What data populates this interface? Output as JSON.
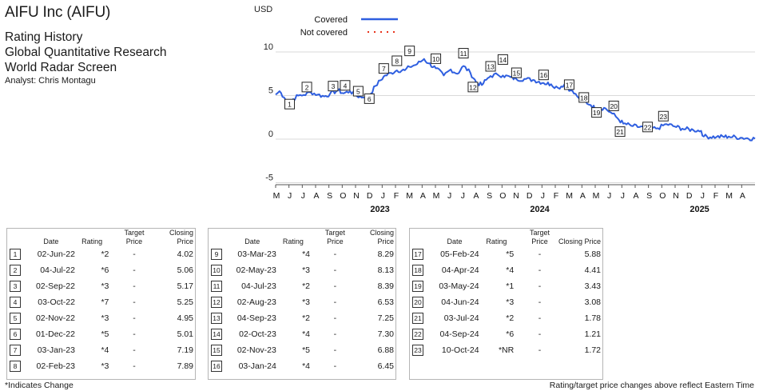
{
  "header": {
    "title": "AIFU Inc (AIFU)",
    "lines": [
      "Rating History",
      "Global Quantitative Research",
      "World Radar Screen"
    ],
    "analyst": "Analyst: Chris Montagu"
  },
  "colors": {
    "line": "#2f5fe0",
    "not_covered": "#e8331c",
    "grid": "#d9d9d9"
  },
  "chart_data": {
    "type": "line",
    "ylabel": "USD",
    "ylim": [
      -5,
      10
    ],
    "yticks": [
      -5,
      0,
      5,
      10
    ],
    "grid": true,
    "legend": {
      "placement": "top",
      "entries": [
        "Covered",
        "Not covered"
      ]
    },
    "x_month_ticks": [
      "M",
      "J",
      "J",
      "A",
      "S",
      "O",
      "N",
      "D",
      "J",
      "F",
      "M",
      "A",
      "M",
      "J",
      "J",
      "A",
      "S",
      "O",
      "N",
      "D",
      "J",
      "F",
      "M",
      "A",
      "M",
      "J",
      "J",
      "A",
      "S",
      "O",
      "N",
      "D",
      "J",
      "F",
      "M",
      "A"
    ],
    "x_years": [
      {
        "label": "2023",
        "month_index": 8
      },
      {
        "label": "2024",
        "month_index": 20
      },
      {
        "label": "2025",
        "month_index": 32
      }
    ],
    "x_start": "2022-05-01",
    "x_end": "2025-04-30",
    "series": [
      {
        "name": "Covered",
        "points": [
          [
            "2022-05-01",
            5.1
          ],
          [
            "2022-05-10",
            5.5
          ],
          [
            "2022-05-20",
            4.8
          ],
          [
            "2022-06-01",
            4.3
          ],
          [
            "2022-06-02",
            4.02
          ],
          [
            "2022-06-10",
            4.6
          ],
          [
            "2022-06-22",
            5.0
          ],
          [
            "2022-07-04",
            5.06
          ],
          [
            "2022-07-20",
            5.4
          ],
          [
            "2022-08-05",
            5.1
          ],
          [
            "2022-08-20",
            4.9
          ],
          [
            "2022-09-02",
            5.17
          ],
          [
            "2022-09-20",
            5.6
          ],
          [
            "2022-10-03",
            5.25
          ],
          [
            "2022-10-18",
            5.5
          ],
          [
            "2022-11-02",
            4.95
          ],
          [
            "2022-11-18",
            4.8
          ],
          [
            "2022-12-01",
            5.01
          ],
          [
            "2022-12-15",
            6.1
          ],
          [
            "2023-01-03",
            7.19
          ],
          [
            "2023-01-20",
            7.6
          ],
          [
            "2023-02-02",
            7.89
          ],
          [
            "2023-02-20",
            7.9
          ],
          [
            "2023-03-03",
            8.29
          ],
          [
            "2023-03-20",
            8.6
          ],
          [
            "2023-04-05",
            9.2
          ],
          [
            "2023-04-15",
            8.7
          ],
          [
            "2023-05-02",
            8.13
          ],
          [
            "2023-05-20",
            7.3
          ],
          [
            "2023-06-05",
            8.0
          ],
          [
            "2023-06-20",
            7.5
          ],
          [
            "2023-07-04",
            8.39
          ],
          [
            "2023-07-20",
            7.6
          ],
          [
            "2023-08-02",
            6.53
          ],
          [
            "2023-08-15",
            6.2
          ],
          [
            "2023-08-25",
            6.8
          ],
          [
            "2023-09-04",
            7.25
          ],
          [
            "2023-09-20",
            7.4
          ],
          [
            "2023-10-02",
            7.3
          ],
          [
            "2023-10-20",
            7.1
          ],
          [
            "2023-11-02",
            6.88
          ],
          [
            "2023-11-20",
            6.9
          ],
          [
            "2023-12-10",
            6.8
          ],
          [
            "2024-01-03",
            6.45
          ],
          [
            "2024-01-20",
            6.3
          ],
          [
            "2024-02-05",
            5.88
          ],
          [
            "2024-02-20",
            6.3
          ],
          [
            "2024-03-05",
            5.6
          ],
          [
            "2024-03-20",
            4.9
          ],
          [
            "2024-04-04",
            4.41
          ],
          [
            "2024-04-20",
            3.9
          ],
          [
            "2024-05-03",
            3.43
          ],
          [
            "2024-05-20",
            3.6
          ],
          [
            "2024-06-04",
            3.08
          ],
          [
            "2024-06-20",
            2.4
          ],
          [
            "2024-07-03",
            1.78
          ],
          [
            "2024-07-25",
            1.5
          ],
          [
            "2024-08-20",
            1.3
          ],
          [
            "2024-09-04",
            1.21
          ],
          [
            "2024-09-20",
            1.25
          ],
          [
            "2024-10-10",
            1.72
          ],
          [
            "2024-10-25",
            1.5
          ],
          [
            "2024-11-15",
            1.2
          ],
          [
            "2024-12-10",
            1.05
          ],
          [
            "2024-12-28",
            0.95
          ],
          [
            "2025-01-03",
            0.3
          ],
          [
            "2025-02-01",
            0.25
          ],
          [
            "2025-03-01",
            0.3
          ],
          [
            "2025-04-01",
            0.15
          ],
          [
            "2025-04-30",
            0.05
          ]
        ]
      }
    ],
    "markers": [
      {
        "n": 1,
        "date": "2022-06-02",
        "price": 4.02
      },
      {
        "n": 2,
        "date": "2022-07-04",
        "price": 5.06
      },
      {
        "n": 3,
        "date": "2022-09-02",
        "price": 5.17
      },
      {
        "n": 4,
        "date": "2022-10-03",
        "price": 5.25
      },
      {
        "n": 5,
        "date": "2022-11-02",
        "price": 4.95
      },
      {
        "n": 6,
        "date": "2022-12-01",
        "price": 5.01
      },
      {
        "n": 7,
        "date": "2023-01-03",
        "price": 7.19
      },
      {
        "n": 8,
        "date": "2023-02-02",
        "price": 7.89
      },
      {
        "n": 9,
        "date": "2023-03-03",
        "price": 8.29
      },
      {
        "n": 10,
        "date": "2023-05-02",
        "price": 8.13
      },
      {
        "n": 11,
        "date": "2023-07-04",
        "price": 8.39
      },
      {
        "n": 12,
        "date": "2023-08-02",
        "price": 6.53
      },
      {
        "n": 13,
        "date": "2023-09-04",
        "price": 7.25
      },
      {
        "n": 14,
        "date": "2023-10-02",
        "price": 7.3
      },
      {
        "n": 15,
        "date": "2023-11-02",
        "price": 6.88
      },
      {
        "n": 16,
        "date": "2024-01-03",
        "price": 6.45
      },
      {
        "n": 17,
        "date": "2024-02-05",
        "price": 5.88
      },
      {
        "n": 18,
        "date": "2024-04-04",
        "price": 4.41
      },
      {
        "n": 19,
        "date": "2024-05-03",
        "price": 3.43
      },
      {
        "n": 20,
        "date": "2024-06-04",
        "price": 3.08
      },
      {
        "n": 21,
        "date": "2024-07-03",
        "price": 1.78
      },
      {
        "n": 22,
        "date": "2024-09-04",
        "price": 1.21
      },
      {
        "n": 23,
        "date": "2024-10-10",
        "price": 1.72
      }
    ]
  },
  "table": {
    "headers": {
      "date": "Date",
      "rating": "Rating",
      "target": "Target Price",
      "close": "Closing Price"
    },
    "groups": [
      [
        {
          "n": "1",
          "date": "02-Jun-22",
          "rating": "*2",
          "target": "-",
          "close": "4.02"
        },
        {
          "n": "2",
          "date": "04-Jul-22",
          "rating": "*6",
          "target": "-",
          "close": "5.06"
        },
        {
          "n": "3",
          "date": "02-Sep-22",
          "rating": "*3",
          "target": "-",
          "close": "5.17"
        },
        {
          "n": "4",
          "date": "03-Oct-22",
          "rating": "*7",
          "target": "-",
          "close": "5.25"
        },
        {
          "n": "5",
          "date": "02-Nov-22",
          "rating": "*3",
          "target": "-",
          "close": "4.95"
        },
        {
          "n": "6",
          "date": "01-Dec-22",
          "rating": "*5",
          "target": "-",
          "close": "5.01"
        },
        {
          "n": "7",
          "date": "03-Jan-23",
          "rating": "*4",
          "target": "-",
          "close": "7.19"
        },
        {
          "n": "8",
          "date": "02-Feb-23",
          "rating": "*3",
          "target": "-",
          "close": "7.89"
        }
      ],
      [
        {
          "n": "9",
          "date": "03-Mar-23",
          "rating": "*4",
          "target": "-",
          "close": "8.29"
        },
        {
          "n": "10",
          "date": "02-May-23",
          "rating": "*3",
          "target": "-",
          "close": "8.13"
        },
        {
          "n": "11",
          "date": "04-Jul-23",
          "rating": "*2",
          "target": "-",
          "close": "8.39"
        },
        {
          "n": "12",
          "date": "02-Aug-23",
          "rating": "*3",
          "target": "-",
          "close": "6.53"
        },
        {
          "n": "13",
          "date": "04-Sep-23",
          "rating": "*2",
          "target": "-",
          "close": "7.25"
        },
        {
          "n": "14",
          "date": "02-Oct-23",
          "rating": "*4",
          "target": "-",
          "close": "7.30"
        },
        {
          "n": "15",
          "date": "02-Nov-23",
          "rating": "*5",
          "target": "-",
          "close": "6.88"
        },
        {
          "n": "16",
          "date": "03-Jan-24",
          "rating": "*4",
          "target": "-",
          "close": "6.45"
        }
      ],
      [
        {
          "n": "17",
          "date": "05-Feb-24",
          "rating": "*5",
          "target": "-",
          "close": "5.88"
        },
        {
          "n": "18",
          "date": "04-Apr-24",
          "rating": "*4",
          "target": "-",
          "close": "4.41"
        },
        {
          "n": "19",
          "date": "03-May-24",
          "rating": "*1",
          "target": "-",
          "close": "3.43"
        },
        {
          "n": "20",
          "date": "04-Jun-24",
          "rating": "*3",
          "target": "-",
          "close": "3.08"
        },
        {
          "n": "21",
          "date": "03-Jul-24",
          "rating": "*2",
          "target": "-",
          "close": "1.78"
        },
        {
          "n": "22",
          "date": "04-Sep-24",
          "rating": "*6",
          "target": "-",
          "close": "1.21"
        },
        {
          "n": "23",
          "date": "10-Oct-24",
          "rating": "*NR",
          "target": "-",
          "close": "1.72"
        }
      ]
    ]
  },
  "footer": {
    "left": "*Indicates Change",
    "right": "Rating/target price changes above reflect Eastern Time"
  }
}
